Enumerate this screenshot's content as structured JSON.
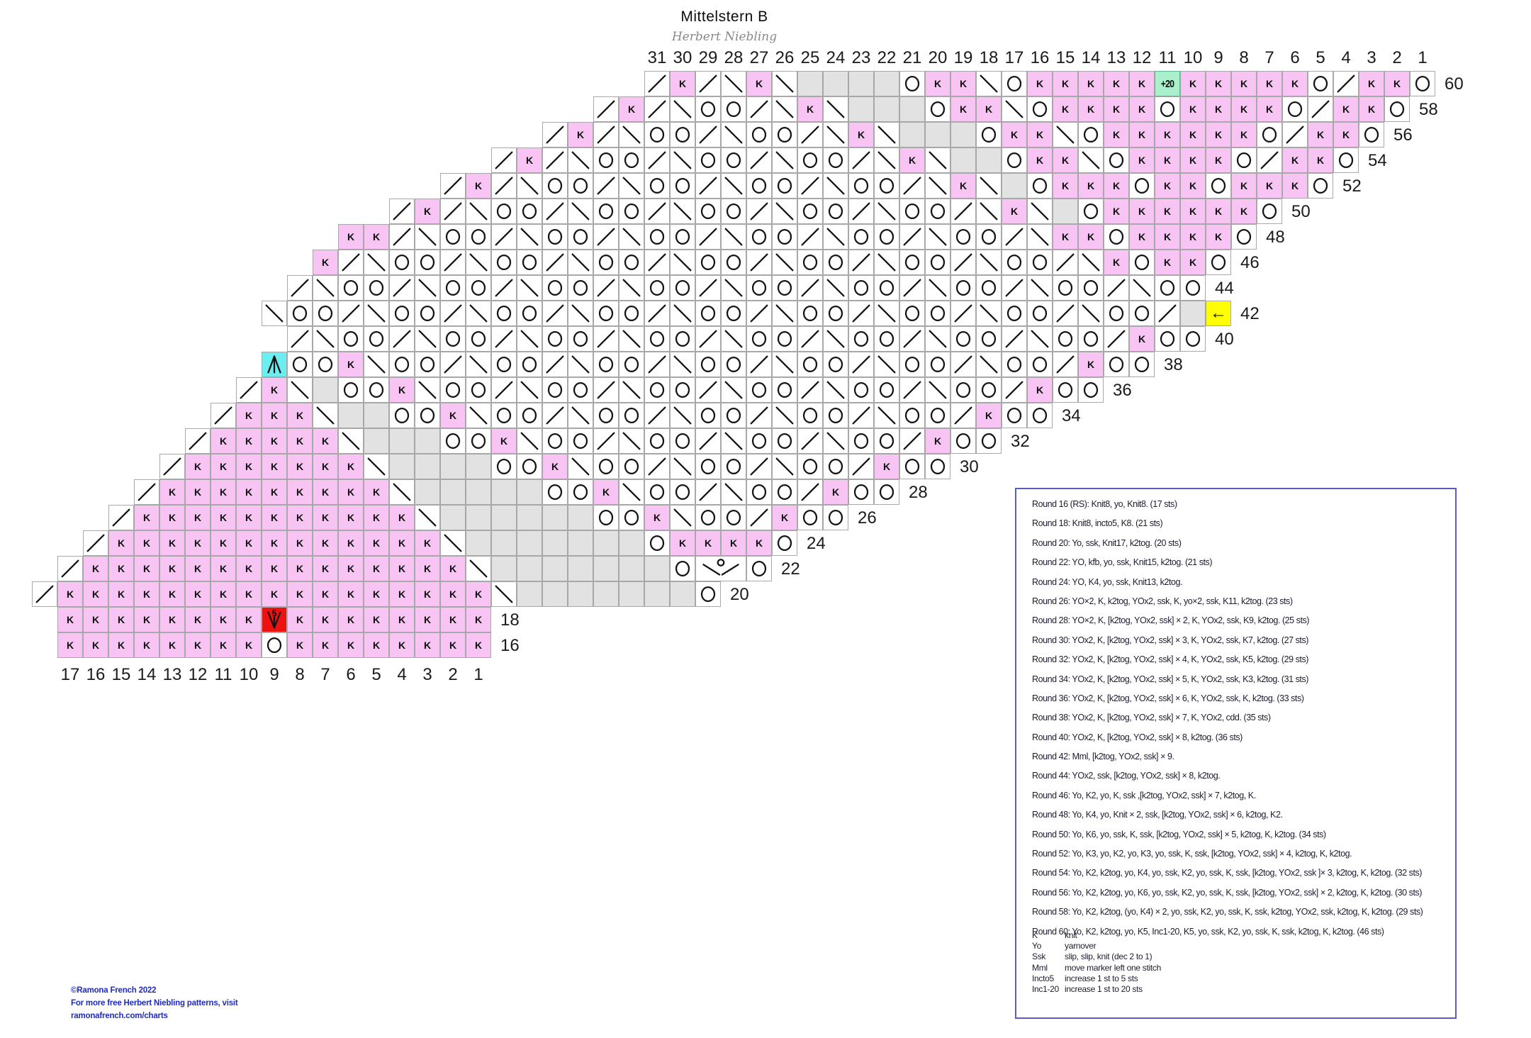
{
  "title": "Mittelstern  B",
  "subtitle": "Herbert Niebling",
  "colors": {
    "pink": "#f8c4f4",
    "grey": "#e2e2e2",
    "mint": "#abf0cc",
    "cyan": "#6ceef0",
    "yellow": "#ffff00",
    "red": "#ee1111",
    "grid": "#a8a8a8",
    "panel_border": "#5b5bc0",
    "footer_blue": "#1f2bbf",
    "ink": "#1c1c30"
  },
  "chart_data": {
    "type": "heatmap",
    "note": "knitting lace chart, rounds 16-60 (even rounds), read right to left",
    "top_numbers": [
      31,
      30,
      29,
      28,
      27,
      26,
      25,
      24,
      23,
      22,
      21,
      20,
      19,
      18,
      17,
      16,
      15,
      14,
      13,
      12,
      11,
      10,
      9,
      8,
      7,
      6,
      5,
      4,
      3,
      2,
      1
    ],
    "bottom_numbers": [
      17,
      16,
      15,
      14,
      13,
      12,
      11,
      10,
      9,
      8,
      7,
      6,
      5,
      4,
      3,
      2,
      1
    ],
    "symbols": {
      "K": "knit (pink)",
      "o": "yarnover (circle)",
      "/": "k2tog",
      "\\": "ssk",
      ".": "no stitch (grey)",
      "A": "cdd centered double decrease (cyan)",
      "M": "Mml move marker left (yellow arrow)",
      "I": "Inc1-20 increase 1 st to 20 sts (+20, mint)",
      "F": "Incto5 increase 1 st to 5 sts (red)",
      "B": "kfb double-width increase symbol"
    },
    "rows": [
      {
        "round": 60,
        "start": 23,
        "cells": "/K/\\K\\....oKK\\oKKKKKIKKKKKo/KKo"
      },
      {
        "round": 58,
        "start": 21,
        "cells": "/K/\\oo/\\K\\...oKK\\oKKKKoKKKKo/KKo"
      },
      {
        "round": 56,
        "start": 19,
        "cells": "/K/\\oo/\\oo/\\K\\...oKK\\oKKKKKKo/KKo"
      },
      {
        "round": 54,
        "start": 17,
        "cells": "/K/\\oo/\\oo/\\oo/\\K\\..oKK\\oKKKKo/KKo"
      },
      {
        "round": 52,
        "start": 15,
        "cells": "/K/\\oo/\\oo/\\oo/\\oo/\\K\\.oKKKoKKoKKKo"
      },
      {
        "round": 50,
        "start": 13,
        "cells": "/K/\\oo/\\oo/\\oo/\\oo/\\oo/\\K\\.oKKKKKKo"
      },
      {
        "round": 48,
        "start": 11,
        "cells": "KK/\\oo/\\oo/\\oo/\\oo/\\oo/\\oo/\\KKoKKKKo"
      },
      {
        "round": 46,
        "start": 10,
        "cells": "K/\\oo/\\oo/\\oo/\\oo/\\oo/\\oo/\\oo/\\KoKKo"
      },
      {
        "round": 44,
        "start": 9,
        "cells": "/\\oo/\\oo/\\oo/\\oo/\\oo/\\oo/\\oo/\\oo/\\oo"
      },
      {
        "round": 42,
        "start": 8,
        "cells": "\\oo/\\oo/\\oo/\\oo/\\oo/\\oo/\\oo/\\oo/\\oo/.M"
      },
      {
        "round": 40,
        "start": 9,
        "cells": "/\\oo/\\oo/\\oo/\\oo/\\oo/\\oo/\\oo/\\oo/Koo"
      },
      {
        "round": 38,
        "start": 8,
        "cells": "AooK\\oo/\\oo/\\oo/\\oo/\\oo/\\oo/\\oo/Koo"
      },
      {
        "round": 36,
        "start": 7,
        "cells": "/K\\.ooK\\oo/\\oo/\\oo/\\oo/\\oo/\\oo/Koo"
      },
      {
        "round": 34,
        "start": 6,
        "cells": "/KKK\\..ooK\\oo/\\oo/\\oo/\\oo/\\oo/Koo"
      },
      {
        "round": 32,
        "start": 5,
        "cells": "/KKKKK\\...ooK\\oo/\\oo/\\oo/\\oo/Koo"
      },
      {
        "round": 30,
        "start": 4,
        "cells": "/KKKKKKK\\....ooK\\oo/\\oo/\\oo/Koo"
      },
      {
        "round": 28,
        "start": 3,
        "cells": "/KKKKKKKKK\\.....ooK\\oo/\\oo/Koo"
      },
      {
        "round": 26,
        "start": 2,
        "cells": "/KKKKKKKKKKK\\......ooK\\oo/Koo"
      },
      {
        "round": 24,
        "start": 1,
        "cells": "/KKKKKKKKKKKKK\\.......oKKKKo"
      },
      {
        "round": 22,
        "start": 0,
        "cells": "/KKKKKKKKKKKKKKK\\.......oBo"
      },
      {
        "round": 20,
        "start": -1,
        "cells": "/KKKKKKKKKKKKKKKKK\\.......o"
      },
      {
        "round": 18,
        "start": 0,
        "cells": "KKKKKKKKFKKKKKKKK"
      },
      {
        "round": 16,
        "start": 0,
        "cells": "KKKKKKKKoKKKKKKKK"
      }
    ]
  },
  "panel": {
    "rounds": [
      "Round 16 (RS): Knit8, yo, Knit8. (17 sts)",
      "Round 18: Knit8, incto5, K8. (21 sts)",
      "Round 20: Yo, ssk, Knit17, k2tog. (20 sts)",
      "Round 22: YO, kfb, yo, ssk, Knit15, k2tog. (21 sts)",
      "Round 24: YO, K4, yo, ssk, Knit13, k2tog.",
      "Round 26: YO×2, K, k2tog, YOx2, ssk, K, yo×2, ssk, K11, k2tog. (23 sts)",
      "Round 28: YO×2, K, [k2tog, YOx2, ssk] × 2, K, YOx2, ssk, K9, k2tog. (25 sts)",
      "Round 30: YOx2, K, [k2tog, YOx2, ssk] × 3, K, YOx2, ssk, K7, k2tog. (27 sts)",
      "Round 32: YOx2, K, [k2tog, YOx2, ssk] × 4, K, YOx2, ssk, K5, k2tog. (29 sts)",
      "Round 34: YOx2, K, [k2tog, YOx2, ssk] × 5, K, YOx2, ssk, K3, k2tog. (31 sts)",
      "Round 36: YOx2, K, [k2tog, YOx2, ssk] × 6, K, YOx2, ssk, K, k2tog. (33 sts)",
      "Round 38: YOx2, K, [k2tog, YOx2, ssk] × 7, K, YOx2, cdd. (35 sts)",
      "Round 40: YOx2, K, [k2tog, YOx2, ssk] × 8, k2tog. (36 sts)",
      "Round 42: Mml, [k2tog, YOx2, ssk] × 9.",
      "Round 44: YOx2, ssk, [k2tog, YOx2, ssk] × 8, k2tog.",
      "Round 46: Yo, K2, yo, K, ssk ,[k2tog, YOx2, ssk] × 7, k2tog, K.",
      "Round 48: Yo, K4, yo, Knit × 2, ssk, [k2tog, YOx2, ssk] × 6, k2tog, K2.",
      "Round 50: Yo, K6, yo, ssk, K, ssk, [k2tog, YOx2, ssk] × 5, k2tog, K, k2tog. (34 sts)",
      "Round 52: Yo, K3, yo, K2, yo, K3, yo, ssk, K, ssk, [k2tog, YOx2, ssk] × 4, k2tog, K, k2tog.",
      "Round 54: Yo, K2, k2tog, yo, K4, yo, ssk, K2, yo, ssk, K, ssk, [k2tog, YOx2, ssk ]× 3, k2tog, K, k2tog. (32 sts)",
      "Round 56: Yo, K2, k2tog, yo, K6, yo, ssk, K2, yo, ssk, K, ssk, [k2tog, YOx2, ssk] × 2, k2tog, K, k2tog. (30 sts)",
      "Round 58: Yo, K2, k2tog, (yo, K4) × 2, yo, ssk, K2, yo, ssk, K, ssk, k2tog, YOx2, ssk, k2tog, K, k2tog. (29 sts)",
      "Round 60: Yo, K2, k2tog, yo, K5, Inc1-20, K5, yo, ssk, K2, yo, ssk, K, ssk, k2tog, K, k2tog. (46 sts)"
    ],
    "legend": [
      {
        "term": "K",
        "def": "knit"
      },
      {
        "term": "Yo",
        "def": "yarnover"
      },
      {
        "term": "Ssk",
        "def": "slip, slip, knit (dec 2 to 1)"
      },
      {
        "term": "Mml",
        "def": "move marker left one stitch"
      },
      {
        "term": "Incto5",
        "def": "increase 1 st to 5 sts"
      },
      {
        "term": "Inc1-20",
        "def": "increase 1 st to 20 sts"
      }
    ]
  },
  "footer": {
    "line1": "©Ramona French 2022",
    "line2": "For more free Herbert Niebling patterns, visit",
    "line3": "ramonafrench.com/charts"
  }
}
